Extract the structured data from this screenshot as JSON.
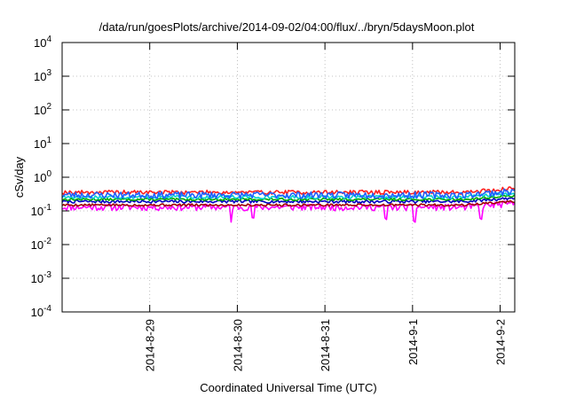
{
  "chart_data": {
    "type": "line",
    "title": "/data/run/goesPlots/archive/2014-09-02/04:00/flux/../bryn/5daysMoon.plot",
    "xlabel": "Coordinated Universal Time (UTC)",
    "ylabel": "cSv/day",
    "yscale": "log",
    "ylim": [
      0.0001,
      10000
    ],
    "y_ticks": [
      {
        "value": 0.0001,
        "base": "10",
        "exp": "-4"
      },
      {
        "value": 0.001,
        "base": "10",
        "exp": "-3"
      },
      {
        "value": 0.01,
        "base": "10",
        "exp": "-2"
      },
      {
        "value": 0.1,
        "base": "10",
        "exp": "-1"
      },
      {
        "value": 1,
        "base": "10",
        "exp": "0"
      },
      {
        "value": 10,
        "base": "10",
        "exp": "1"
      },
      {
        "value": 100,
        "base": "10",
        "exp": "2"
      },
      {
        "value": 1000,
        "base": "10",
        "exp": "3"
      },
      {
        "value": 10000,
        "base": "10",
        "exp": "4"
      }
    ],
    "xlim": [
      "2014-08-28 00:00",
      "2014-09-02 04:00"
    ],
    "x_ticks": [
      {
        "value": "2014-08-29 00:00",
        "label": "2014-8-29"
      },
      {
        "value": "2014-08-30 00:00",
        "label": "2014-8-30"
      },
      {
        "value": "2014-08-31 00:00",
        "label": "2014-8-31"
      },
      {
        "value": "2014-09-01 00:00",
        "label": "2014-9-1"
      },
      {
        "value": "2014-09-02 00:00",
        "label": "2014-9-2"
      }
    ],
    "grid": true,
    "legend": "none",
    "series": [
      {
        "color": "#ff00ff",
        "base": 0.13,
        "noise": 0.22,
        "seed": 11,
        "dips": [
          [
            1.93,
            0.35
          ],
          [
            2.18,
            0.5
          ],
          [
            3.7,
            0.45
          ],
          [
            4.02,
            0.4
          ],
          [
            4.78,
            0.38
          ]
        ]
      },
      {
        "color": "#a00000",
        "base": 0.15,
        "noise": 0.08,
        "seed": 5
      },
      {
        "color": "#0000c0",
        "base": 0.19,
        "noise": 0.1,
        "seed": 7
      },
      {
        "color": "#00aa00",
        "base": 0.22,
        "noise": 0.08,
        "seed": 13
      },
      {
        "color": "#00d0d0",
        "base": 0.26,
        "noise": 0.12,
        "seed": 17
      },
      {
        "color": "#ff2020",
        "base": 0.36,
        "noise": 0.14,
        "seed": 19
      },
      {
        "color": "#2060ff",
        "base": 0.3,
        "noise": 0.22,
        "seed": 23
      }
    ]
  }
}
